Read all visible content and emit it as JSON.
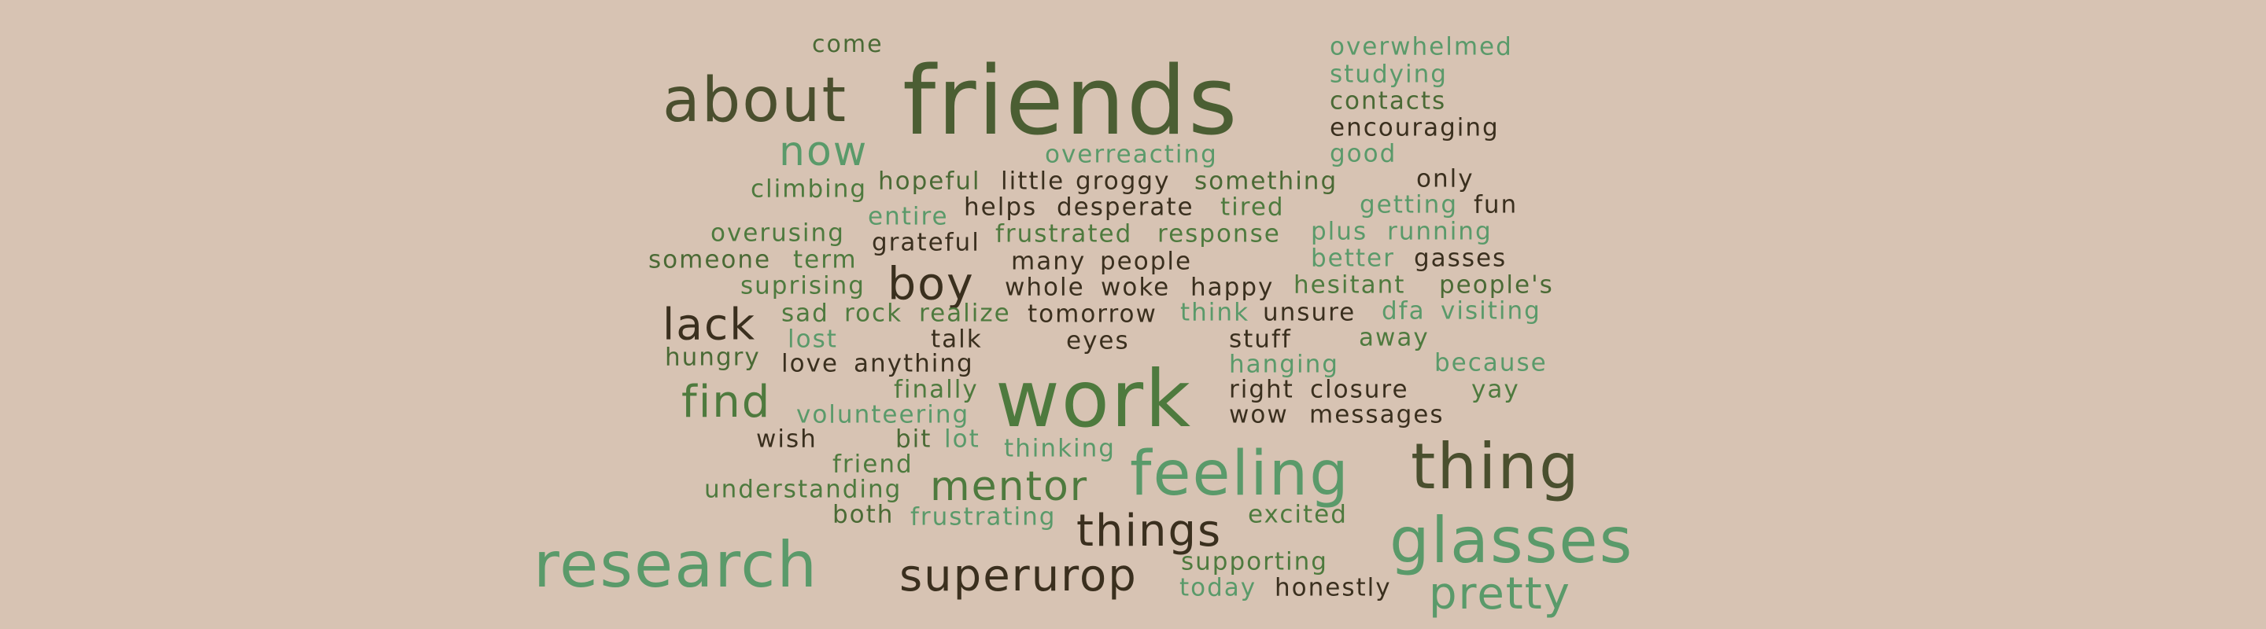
{
  "palette": {
    "background": "#d7c3b3",
    "dark_olive": "#4b5e33",
    "olive_green": "#4e7a3e",
    "sage_green": "#5a9a6a",
    "dark_brown": "#3a2f1e",
    "moss": "#4a6a35"
  },
  "words": [
    {
      "text": "friends",
      "color": "#4b5e33"
    },
    {
      "text": "about",
      "color": "#4a4f2e"
    },
    {
      "text": "come",
      "color": "#4a6a35"
    },
    {
      "text": "overwhelmed",
      "color": "#5a9a6a"
    },
    {
      "text": "studying",
      "color": "#5a9a6a"
    },
    {
      "text": "contacts",
      "color": "#4a6a35"
    },
    {
      "text": "encouraging",
      "color": "#3a2f1e"
    },
    {
      "text": "good",
      "color": "#5a9a6a"
    },
    {
      "text": "now",
      "color": "#5a9a6a"
    },
    {
      "text": "overreacting",
      "color": "#5a9a6a"
    },
    {
      "text": "climbing",
      "color": "#4e7a3e"
    },
    {
      "text": "hopeful",
      "color": "#4a6a35"
    },
    {
      "text": "little",
      "color": "#3a2f1e"
    },
    {
      "text": "groggy",
      "color": "#3a2f1e"
    },
    {
      "text": "something",
      "color": "#4a6a35"
    },
    {
      "text": "only",
      "color": "#3a2f1e"
    },
    {
      "text": "entire",
      "color": "#5a9a6a"
    },
    {
      "text": "helps",
      "color": "#3a2f1e"
    },
    {
      "text": "desperate",
      "color": "#3a2f1e"
    },
    {
      "text": "tired",
      "color": "#4e7a3e"
    },
    {
      "text": "getting",
      "color": "#5a9a6a"
    },
    {
      "text": "fun",
      "color": "#3a2f1e"
    },
    {
      "text": "overusing",
      "color": "#4e7a3e"
    },
    {
      "text": "grateful",
      "color": "#3a2f1e"
    },
    {
      "text": "frustrated",
      "color": "#4e7a3e"
    },
    {
      "text": "response",
      "color": "#4e7a3e"
    },
    {
      "text": "plus",
      "color": "#5a9a6a"
    },
    {
      "text": "running",
      "color": "#5a9a6a"
    },
    {
      "text": "someone",
      "color": "#4a6a35"
    },
    {
      "text": "term",
      "color": "#4e7a3e"
    },
    {
      "text": "many",
      "color": "#3a2f1e"
    },
    {
      "text": "people",
      "color": "#3a2f1e"
    },
    {
      "text": "better",
      "color": "#5a9a6a"
    },
    {
      "text": "gasses",
      "color": "#3a2f1e"
    },
    {
      "text": "boy",
      "color": "#3a2f1e"
    },
    {
      "text": "suprising",
      "color": "#4e7a3e"
    },
    {
      "text": "whole",
      "color": "#3a2f1e"
    },
    {
      "text": "woke",
      "color": "#3a2f1e"
    },
    {
      "text": "happy",
      "color": "#3a2f1e"
    },
    {
      "text": "hesitant",
      "color": "#4e7a3e"
    },
    {
      "text": "people's",
      "color": "#4a6a35"
    },
    {
      "text": "lack",
      "color": "#3a2f1e"
    },
    {
      "text": "sad",
      "color": "#4e7a3e"
    },
    {
      "text": "rock",
      "color": "#4e7a3e"
    },
    {
      "text": "realize",
      "color": "#4e7a3e"
    },
    {
      "text": "tomorrow",
      "color": "#3a2f1e"
    },
    {
      "text": "think",
      "color": "#5a9a6a"
    },
    {
      "text": "unsure",
      "color": "#3a2f1e"
    },
    {
      "text": "dfa",
      "color": "#5a9a6a"
    },
    {
      "text": "visiting",
      "color": "#5a9a6a"
    },
    {
      "text": "lost",
      "color": "#5a9a6a"
    },
    {
      "text": "talk",
      "color": "#3a2f1e"
    },
    {
      "text": "eyes",
      "color": "#3a2f1e"
    },
    {
      "text": "stuff",
      "color": "#3a2f1e"
    },
    {
      "text": "away",
      "color": "#4e7a3e"
    },
    {
      "text": "hungry",
      "color": "#4a6a35"
    },
    {
      "text": "love",
      "color": "#3a2f1e"
    },
    {
      "text": "anything",
      "color": "#3a2f1e"
    },
    {
      "text": "hanging",
      "color": "#5a9a6a"
    },
    {
      "text": "because",
      "color": "#5a9a6a"
    },
    {
      "text": "work",
      "color": "#4e7a3e"
    },
    {
      "text": "find",
      "color": "#4e7a3e"
    },
    {
      "text": "finally",
      "color": "#4e7a3e"
    },
    {
      "text": "right",
      "color": "#3a2f1e"
    },
    {
      "text": "closure",
      "color": "#3a2f1e"
    },
    {
      "text": "yay",
      "color": "#4e7a3e"
    },
    {
      "text": "volunteering",
      "color": "#5a9a6a"
    },
    {
      "text": "wow",
      "color": "#3a2f1e"
    },
    {
      "text": "messages",
      "color": "#3a2f1e"
    },
    {
      "text": "wish",
      "color": "#3a2f1e"
    },
    {
      "text": "bit",
      "color": "#4a6a35"
    },
    {
      "text": "lot",
      "color": "#5a9a6a"
    },
    {
      "text": "thinking",
      "color": "#5a9a6a"
    },
    {
      "text": "thing",
      "color": "#4a4f2e"
    },
    {
      "text": "feeling",
      "color": "#5a9a6a"
    },
    {
      "text": "friend",
      "color": "#4e7a3e"
    },
    {
      "text": "mentor",
      "color": "#4e7a3e"
    },
    {
      "text": "understanding",
      "color": "#4e7a3e"
    },
    {
      "text": "both",
      "color": "#4a6a35"
    },
    {
      "text": "frustrating",
      "color": "#5a9a6a"
    },
    {
      "text": "things",
      "color": "#3a2f1e"
    },
    {
      "text": "excited",
      "color": "#4e7a3e"
    },
    {
      "text": "glasses",
      "color": "#5a9a6a"
    },
    {
      "text": "research",
      "color": "#5a9a6a"
    },
    {
      "text": "superurop",
      "color": "#3a2f1e"
    },
    {
      "text": "supporting",
      "color": "#4e7a3e"
    },
    {
      "text": "today",
      "color": "#5a9a6a"
    },
    {
      "text": "honestly",
      "color": "#3a2f1e"
    },
    {
      "text": "pretty",
      "color": "#5a9a6a"
    }
  ]
}
